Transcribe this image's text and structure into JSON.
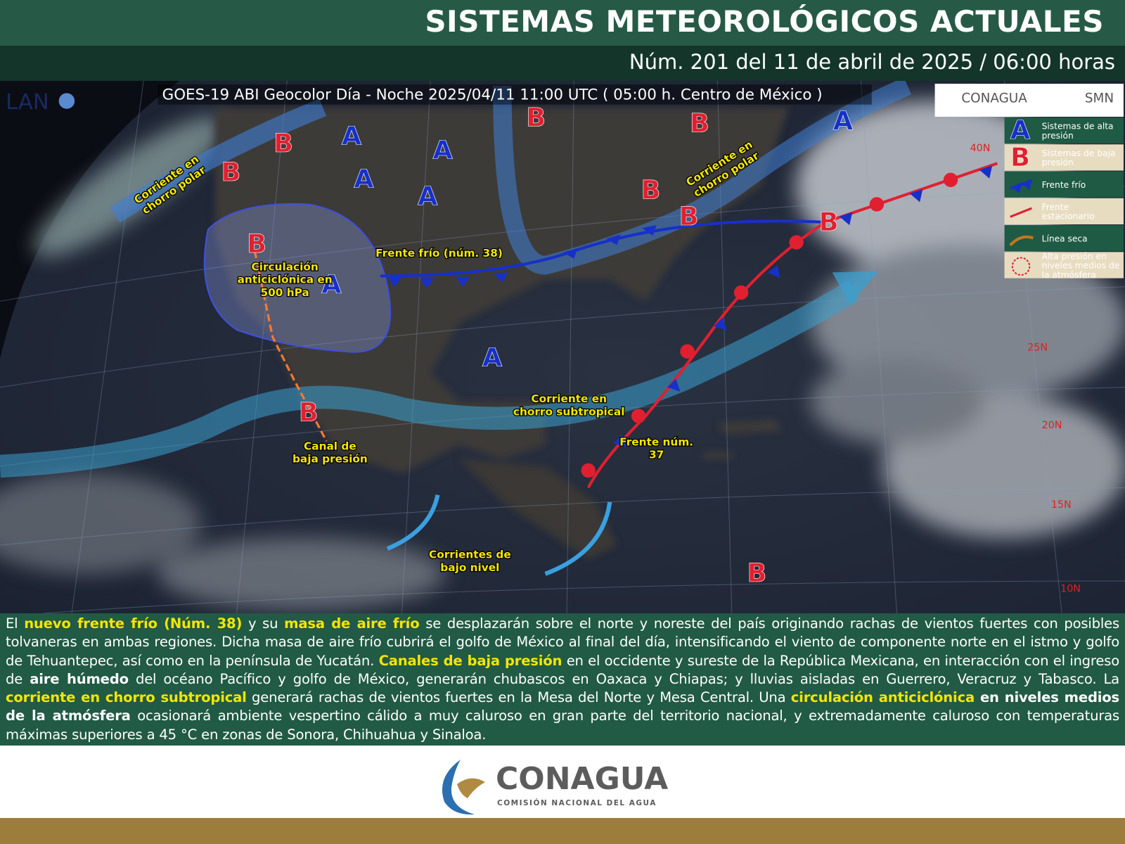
{
  "header": {
    "title": "SISTEMAS METEOROLÓGICOS ACTUALES",
    "subtitle": "Núm. 201 del 11 de abril de 2025 / 06:00 horas"
  },
  "map": {
    "source_logo": "LAN",
    "satellite_caption": "GOES-19 ABI Geocolor Día - Noche 2025/04/11 11:00 UTC ( 05:00 h. Centro de México )",
    "logos": [
      "CONAGUA",
      "SMN"
    ],
    "pressure_systems": [
      "B",
      "B",
      "A",
      "A",
      "A",
      "A",
      "B",
      "B",
      "A",
      "B",
      "B",
      "B",
      "B",
      "A",
      "A",
      "B",
      "B"
    ],
    "labels": [
      "Corriente en chorro polar",
      "Corriente en chorro polar",
      "Frente frío (núm. 38)",
      "Circulación anticiclónica en 500 hPa",
      "Corriente en chorro subtropical",
      "Frente núm. 37",
      "Canal de baja presión",
      "Corrientes de bajo nivel"
    ],
    "latitudes": [
      "40N",
      "25N",
      "20N",
      "15N",
      "10N"
    ],
    "legend": [
      "Sistemas de alta presión",
      "Sistemas de baja presión",
      "Frente frío",
      "Frente estacionario",
      "Línea seca",
      "Alta presión en niveles medios de la atmósfera"
    ]
  },
  "paragraph": [
    {
      "text": "El "
    },
    {
      "text": "nuevo frente frío (Núm. 38)",
      "emphasis": "yellow"
    },
    {
      "text": " y su "
    },
    {
      "text": "masa de aire frío",
      "emphasis": "yellow"
    },
    {
      "text": " se desplazarán sobre el norte y noreste del país originando rachas de vientos fuertes con posibles tolvaneras en ambas regiones. Dicha masa de aire frío cubrirá el golfo de México al final del día, intensificando el viento de componente norte en el istmo y golfo de Tehuantepec, así como en la península de Yucatán. "
    },
    {
      "text": "Canales de baja presión",
      "emphasis": "yellow"
    },
    {
      "text": " en el occidente y sureste de la República Mexicana, en interacción con el ingreso de "
    },
    {
      "text": "aire húmedo",
      "emphasis": "bold"
    },
    {
      "text": " del océano Pacífico y golfo de México, generarán chubascos en Oaxaca y Chiapas; y lluvias aisladas en Guerrero, Veracruz y Tabasco. La "
    },
    {
      "text": "corriente en chorro subtropical",
      "emphasis": "yellow"
    },
    {
      "text": " generará rachas de vientos fuertes en la Mesa del Norte y Mesa Central. Una "
    },
    {
      "text": "circulación anticiclónica",
      "emphasis": "yellow"
    },
    {
      "text": " en niveles medios de la atmósfera",
      "emphasis": "bold"
    },
    {
      "text": " ocasionará ambiente vespertino cálido a muy caluroso en gran parte del territorio nacional, y extremadamente caluroso con temperaturas máximas superiores a 45 °C en zonas de Sonora, Chihuahua y Sinaloa."
    }
  ],
  "footer": {
    "logo": "CONAGUA",
    "tagline": "COMISIÓN NACIONAL DEL AGUA"
  }
}
